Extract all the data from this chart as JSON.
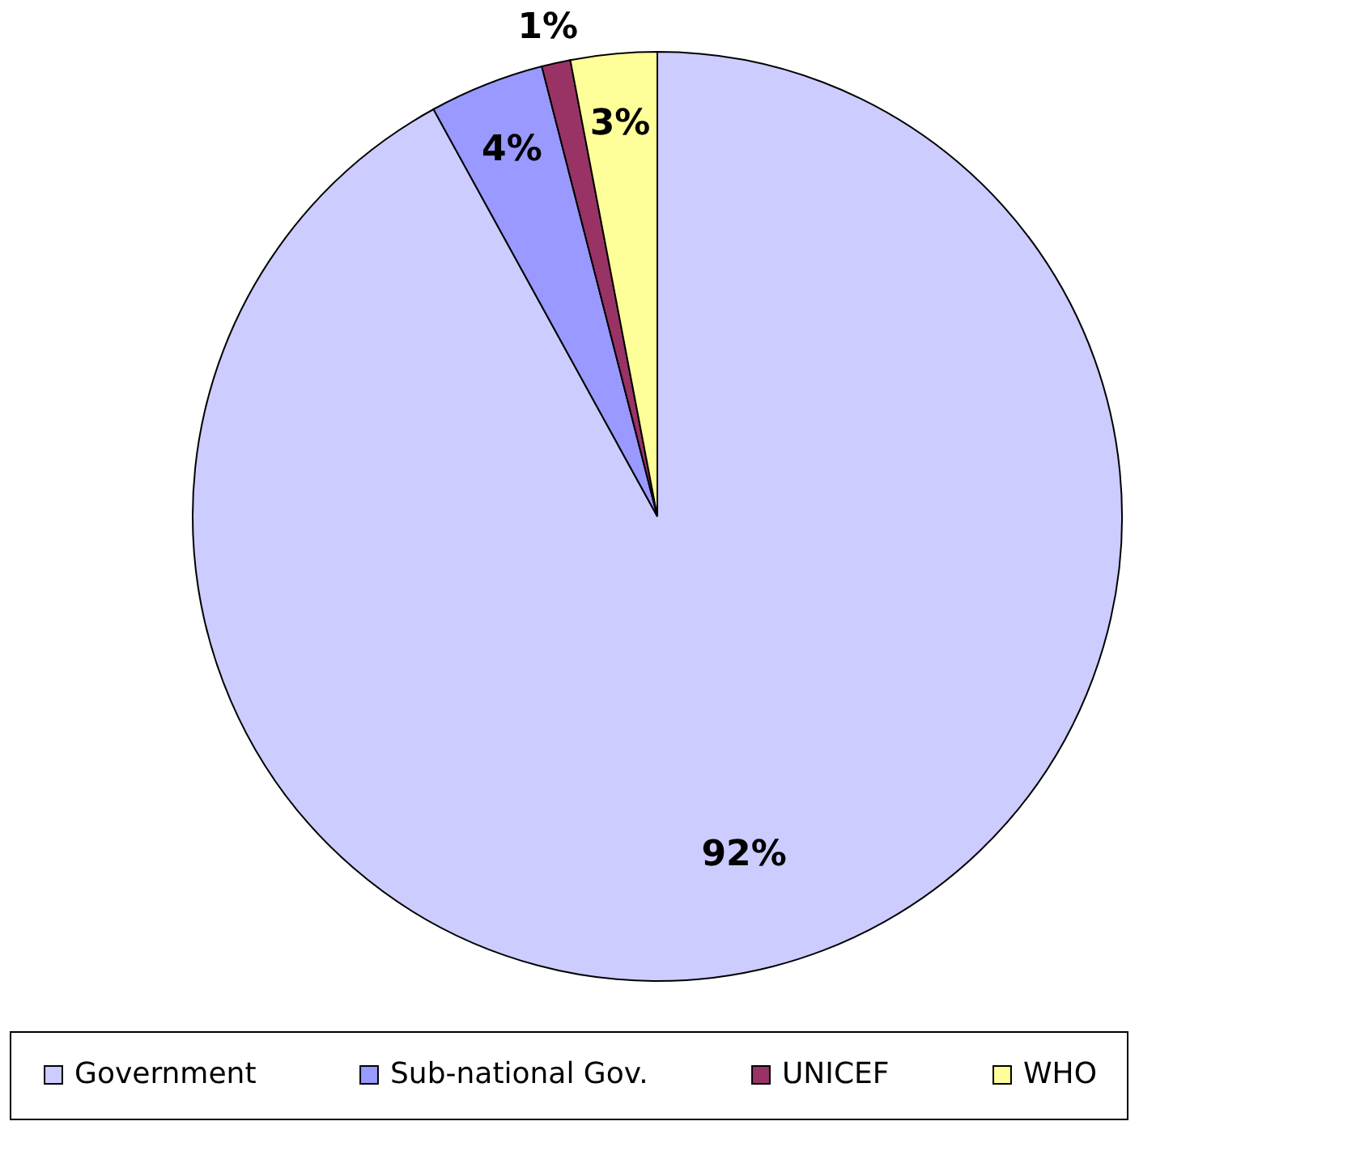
{
  "chart_data": {
    "type": "pie",
    "categories": [
      "Government",
      "Sub-national Gov.",
      "UNICEF",
      "WHO"
    ],
    "values": [
      92,
      4,
      1,
      3
    ],
    "colors": [
      "#ccccff",
      "#9999ff",
      "#993366",
      "#ffff99"
    ],
    "value_labels": [
      "92%",
      "4%",
      "1%",
      "3%"
    ],
    "legend": "bottom"
  }
}
